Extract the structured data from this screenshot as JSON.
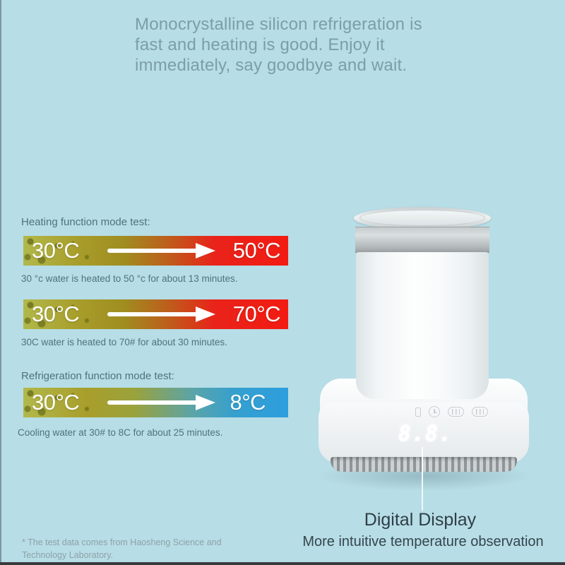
{
  "headline": {
    "lines": [
      "Monocrystalline silicon refrigeration is",
      "fast and heating is good. Enjoy it",
      "immediately, say goodbye and wait."
    ]
  },
  "tests": {
    "heating_label": "Heating function mode test:",
    "refrigeration_label": "Refrigeration function mode test:",
    "bars": [
      {
        "mode": "heating",
        "start": "30°C",
        "end": "50°C",
        "caption": "30 °c water is heated to 50 °c for about 13 minutes."
      },
      {
        "mode": "heating",
        "start": "30°C",
        "end": "70°C",
        "caption": "30C water is heated to 70# for about 30 minutes."
      },
      {
        "mode": "cooling",
        "start": "30°C",
        "end": "8°C",
        "caption": "Cooling water at 30# to 8C for about 25 minutes."
      }
    ]
  },
  "product": {
    "display_value": "8.8.",
    "base_icons": [
      "indicator-light-icon",
      "timer-icon",
      "heat-mode-icon",
      "cool-mode-icon"
    ],
    "callout": {
      "title": "Digital Display",
      "subtitle": "More intuitive temperature observation"
    }
  },
  "footnote": "* The test data comes from Haosheng Science and Technology Laboratory.",
  "colors": {
    "background": "#b7dde6",
    "headline_text": "#7b9ea8",
    "body_text": "#4e737f",
    "dark_text": "#2f3e45",
    "footnote_text": "#8ea1a8",
    "gradient_start_olive": "#a89e2b",
    "heat_red": "#f31b12",
    "cool_blue": "#2d9ede",
    "bottom_bar": "#3a3a3a"
  }
}
